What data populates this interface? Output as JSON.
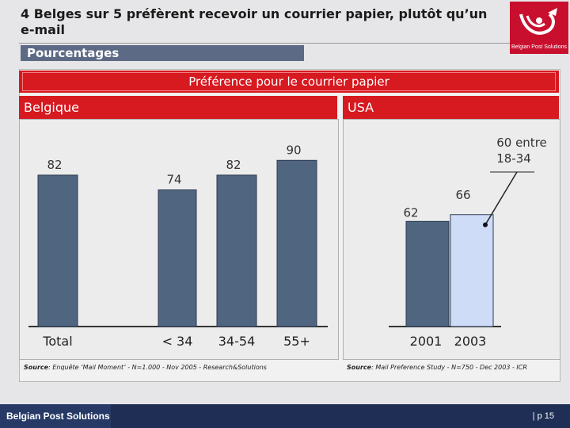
{
  "slide": {
    "title": "4 Belges sur 5 préfèrent recevoir un courrier papier, plutôt qu’un e-mail",
    "subtitle_bar": "Pourcentages",
    "banner": "Préférence pour le courrier papier",
    "logo_text": "Belgian Post Solutions",
    "footer_left": "Belgian Post Solutions",
    "footer_right": "| p 15"
  },
  "sources": {
    "belgium_label": "Source",
    "belgium": ": Enquête ‘Mail Moment’ - N=1.000 - Nov 2005 - Research&Solutions",
    "usa_label": "Source",
    "usa": ": Mail Preference Study - N=750 - Dec 2003 - ICR"
  },
  "colors": {
    "bar_dark": "#506580",
    "bar_light": "#cfdcf8",
    "red": "#d71920",
    "navy": "#1e2e55"
  },
  "chart_data": [
    {
      "type": "bar",
      "title": "Belgique",
      "categories": [
        "Total",
        "< 34",
        "34-54",
        "55+"
      ],
      "values": [
        82,
        74,
        82,
        90
      ]
    },
    {
      "type": "bar",
      "title": "USA",
      "categories": [
        "2001",
        "2003"
      ],
      "values": [
        62,
        66
      ],
      "annotation": "60 entre 18-34",
      "annotation_value": 60
    }
  ]
}
